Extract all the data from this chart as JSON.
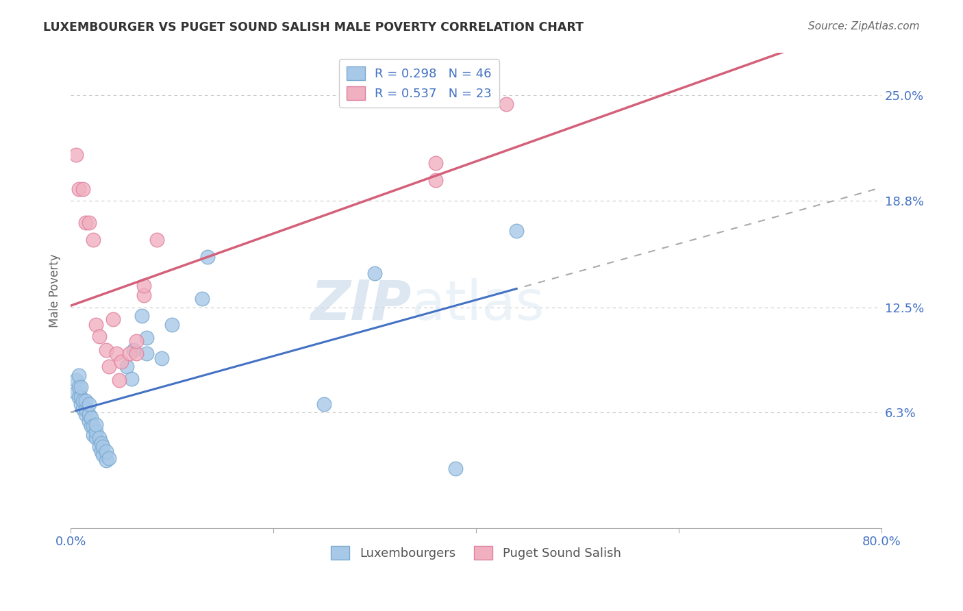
{
  "title": "LUXEMBOURGER VS PUGET SOUND SALISH MALE POVERTY CORRELATION CHART",
  "source": "Source: ZipAtlas.com",
  "ylabel": "Male Poverty",
  "watermark_zip": "ZIP",
  "watermark_atlas": "atlas",
  "xlim": [
    0.0,
    0.8
  ],
  "ylim": [
    -0.005,
    0.275
  ],
  "ytick_positions": [
    0.063,
    0.125,
    0.188,
    0.25
  ],
  "ytick_labels": [
    "6.3%",
    "12.5%",
    "18.8%",
    "25.0%"
  ],
  "grid_color": "#c8c8c8",
  "background_color": "#ffffff",
  "lux_color": "#a8c8e8",
  "lux_edge_color": "#7aaad0",
  "pss_color": "#f0b0c0",
  "pss_edge_color": "#e080a0",
  "lux_R": 0.298,
  "lux_N": 46,
  "pss_R": 0.537,
  "pss_N": 23,
  "legend_label_lux": "Luxembourgers",
  "legend_label_pss": "Puget Sound Salish",
  "trend_lux_color": "#4472c4",
  "trend_pss_color": "#d4607a",
  "lux_x": [
    0.005,
    0.005,
    0.008,
    0.008,
    0.008,
    0.01,
    0.01,
    0.01,
    0.012,
    0.012,
    0.015,
    0.015,
    0.015,
    0.018,
    0.018,
    0.018,
    0.02,
    0.02,
    0.022,
    0.022,
    0.025,
    0.025,
    0.025,
    0.028,
    0.028,
    0.03,
    0.03,
    0.032,
    0.032,
    0.035,
    0.035,
    0.038,
    0.055,
    0.06,
    0.062,
    0.07,
    0.075,
    0.075,
    0.09,
    0.1,
    0.13,
    0.135,
    0.25,
    0.3,
    0.38,
    0.44
  ],
  "lux_y": [
    0.075,
    0.082,
    0.072,
    0.078,
    0.085,
    0.068,
    0.072,
    0.078,
    0.065,
    0.07,
    0.062,
    0.065,
    0.07,
    0.058,
    0.062,
    0.068,
    0.055,
    0.06,
    0.05,
    0.055,
    0.048,
    0.052,
    0.056,
    0.043,
    0.048,
    0.04,
    0.045,
    0.038,
    0.043,
    0.035,
    0.04,
    0.036,
    0.09,
    0.083,
    0.1,
    0.12,
    0.098,
    0.107,
    0.095,
    0.115,
    0.13,
    0.155,
    0.068,
    0.145,
    0.03,
    0.17
  ],
  "pss_x": [
    0.005,
    0.008,
    0.012,
    0.015,
    0.018,
    0.022,
    0.025,
    0.028,
    0.035,
    0.038,
    0.042,
    0.045,
    0.048,
    0.05,
    0.058,
    0.065,
    0.065,
    0.072,
    0.072,
    0.085,
    0.36,
    0.36,
    0.43
  ],
  "pss_y": [
    0.215,
    0.195,
    0.195,
    0.175,
    0.175,
    0.165,
    0.115,
    0.108,
    0.1,
    0.09,
    0.118,
    0.098,
    0.082,
    0.093,
    0.098,
    0.098,
    0.105,
    0.132,
    0.138,
    0.165,
    0.2,
    0.21,
    0.245
  ]
}
